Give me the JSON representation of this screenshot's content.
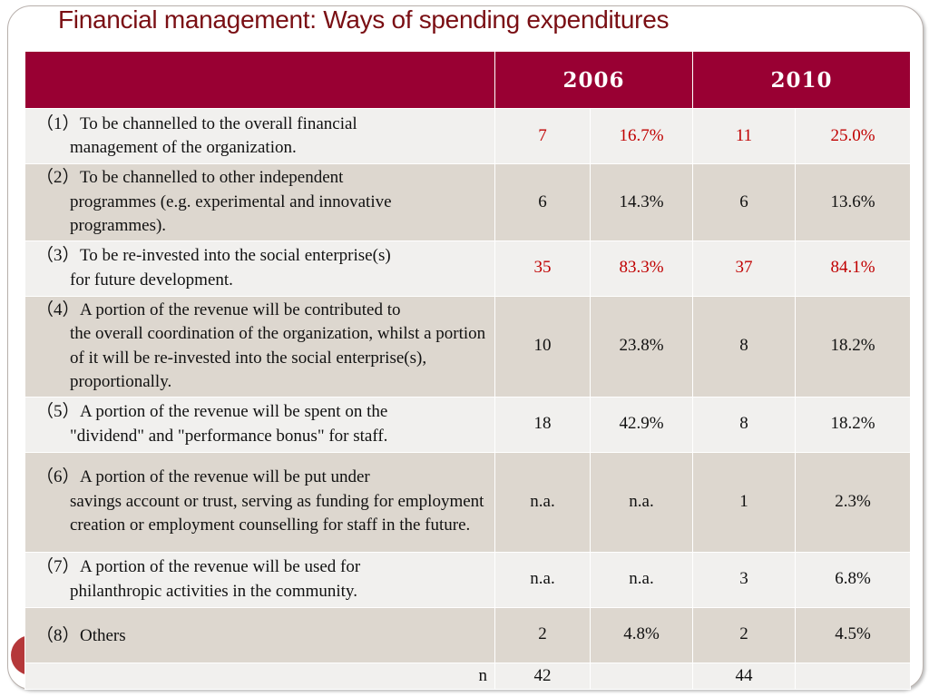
{
  "title": "Financial management: Ways of spending expenditures",
  "table": {
    "headers": [
      "",
      "2006",
      "2010"
    ],
    "rows": [
      {
        "num": "（1）",
        "line1": "To be channelled to the overall financial",
        "rest": "management of the organization.",
        "v2006": "7",
        "p2006": "16.7%",
        "v2010": "11",
        "p2010": "25.0%"
      },
      {
        "num": "（2）",
        "line1": "To be channelled to other independent",
        "rest": "programmes (e.g. experimental and innovative programmes).",
        "v2006": "6",
        "p2006": "14.3%",
        "v2010": "6",
        "p2010": "13.6%"
      },
      {
        "num": "（3）",
        "line1": "To be re-invested into the social enterprise(s)",
        "rest": "for future development.",
        "v2006": "35",
        "p2006": "83.3%",
        "v2010": "37",
        "p2010": "84.1%"
      },
      {
        "num": "（4）",
        "line1": "A portion of the revenue will be contributed to",
        "rest": "the overall coordination of the organization, whilst a portion of it will be re-invested into the social enterprise(s), proportionally.",
        "v2006": "10",
        "p2006": "23.8%",
        "v2010": "8",
        "p2010": "18.2%"
      },
      {
        "num": "（5）",
        "line1": "A portion of the revenue will be spent on the",
        "rest": "\"dividend\" and \"performance bonus\" for staff.",
        "v2006": "18",
        "p2006": "42.9%",
        "v2010": "8",
        "p2010": "18.2%"
      },
      {
        "num": "（6）",
        "line1": "A portion of the revenue will be put under",
        "rest": "savings account or trust, serving as funding for employment creation or employment counselling for staff in the future.",
        "v2006": "n.a.",
        "p2006": "n.a.",
        "v2010": "1",
        "p2010": "2.3%"
      },
      {
        "num": "（7）",
        "line1": "A portion of the revenue will be used for",
        "rest": "philanthropic activities in the community.",
        "v2006": "n.a.",
        "p2006": "n.a.",
        "v2010": "3",
        "p2010": "6.8%"
      },
      {
        "num": "（8）",
        "line1": "Others",
        "rest": "",
        "v2006": "2",
        "p2006": "4.8%",
        "v2010": "2",
        "p2010": "4.5%"
      }
    ],
    "n_label": "n",
    "n2006": "42",
    "n2010": "44"
  },
  "colors": {
    "header_bg": "#990033",
    "title": "#7a0f14",
    "highlight_text": "#c00000",
    "row_light": "#f1f0ee",
    "row_dark": "#ddd7cf"
  }
}
